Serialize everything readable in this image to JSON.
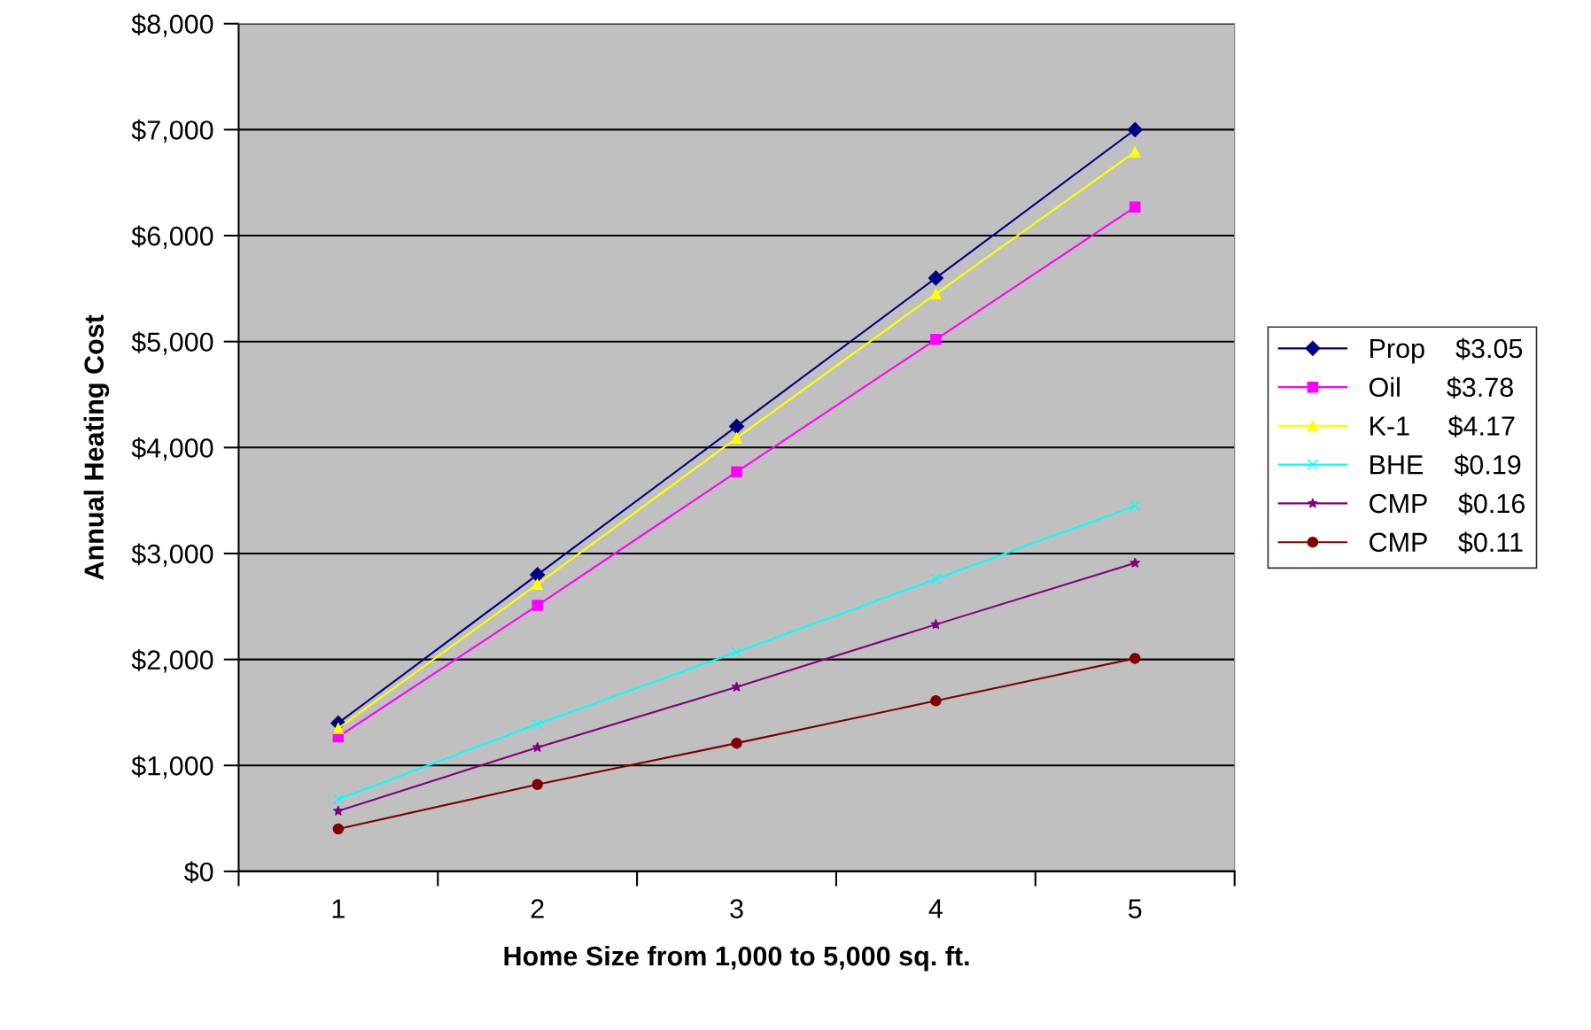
{
  "chart_data": {
    "type": "line",
    "xlabel": "Home Size from 1,000 to 5,000 sq. ft.",
    "ylabel": "Annual Heating Cost",
    "categories": [
      "1",
      "2",
      "3",
      "4",
      "5"
    ],
    "series": [
      {
        "name": "Prop    $3.05",
        "color": "#000080",
        "marker": "diamond",
        "values": [
          1400,
          2800,
          4200,
          5600,
          7000
        ]
      },
      {
        "name": "Oil      $3.78",
        "color": "#ff00ff",
        "marker": "square",
        "values": [
          1270,
          2510,
          3770,
          5020,
          6270
        ]
      },
      {
        "name": "K-1     $4.17",
        "color": "#ffff00",
        "marker": "triangle",
        "values": [
          1350,
          2710,
          4090,
          5450,
          6790
        ]
      },
      {
        "name": "BHE    $0.19",
        "color": "#00ffff",
        "marker": "cross",
        "values": [
          680,
          1390,
          2070,
          2760,
          3450
        ]
      },
      {
        "name": "CMP    $0.16",
        "color": "#800080",
        "marker": "star",
        "values": [
          570,
          1170,
          1740,
          2330,
          2910
        ]
      },
      {
        "name": "CMP    $0.11",
        "color": "#800000",
        "marker": "circle",
        "values": [
          400,
          820,
          1210,
          1610,
          2010
        ]
      }
    ],
    "ylim": [
      0,
      8000
    ],
    "yticks": [
      {
        "value": 0,
        "label": "$0"
      },
      {
        "value": 1000,
        "label": "$1,000"
      },
      {
        "value": 2000,
        "label": "$2,000"
      },
      {
        "value": 3000,
        "label": "$3,000"
      },
      {
        "value": 4000,
        "label": "$4,000"
      },
      {
        "value": 5000,
        "label": "$5,000"
      },
      {
        "value": 6000,
        "label": "$6,000"
      },
      {
        "value": 7000,
        "label": "$7,000"
      },
      {
        "value": 8000,
        "label": "$8,000"
      }
    ],
    "grid": "y",
    "legend": "right"
  }
}
